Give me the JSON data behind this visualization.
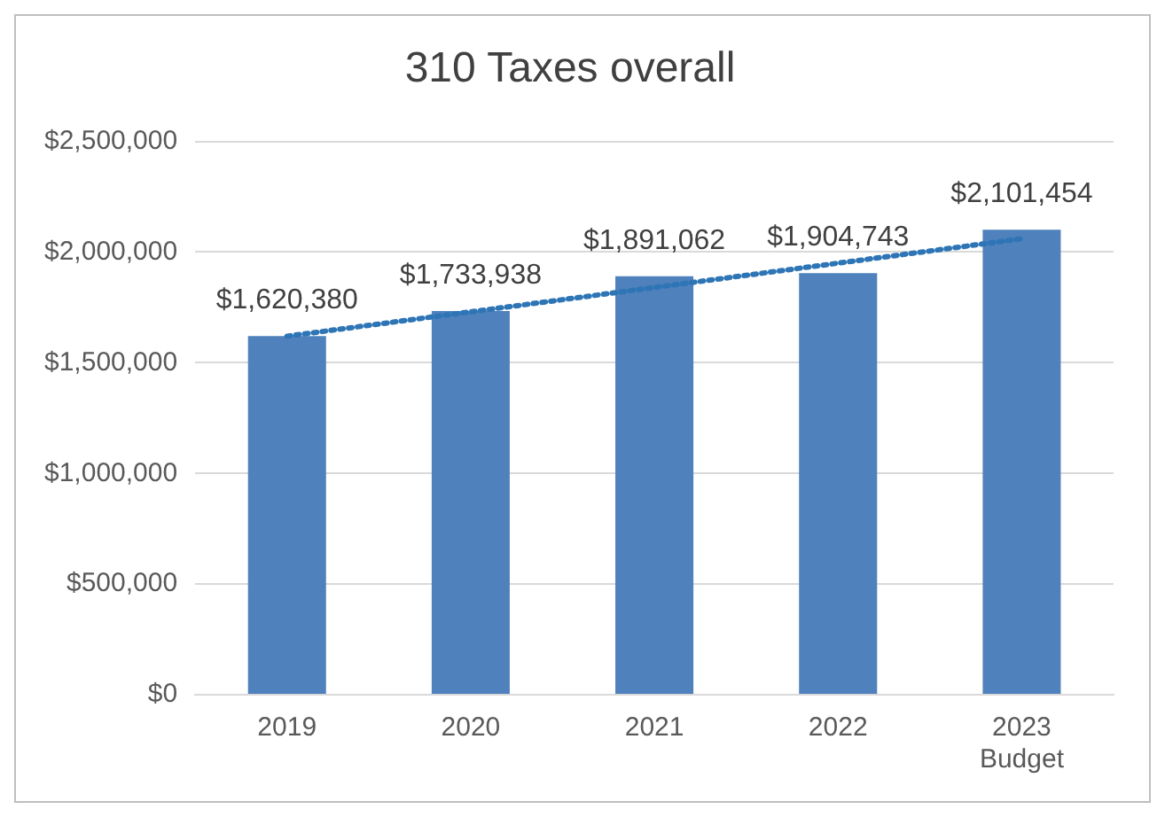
{
  "chart_data": {
    "type": "bar",
    "title": "310 Taxes overall",
    "categories": [
      "2019",
      "2020",
      "2021",
      "2022",
      "2023\nBudget"
    ],
    "series": [
      {
        "color": "#4f81bd",
        "values": [
          1620380,
          1733938,
          1891062,
          1904743,
          2101454
        ],
        "value_labels": [
          "$1,620,380",
          "$1,733,938",
          "$1,891,062",
          "$1,904,743",
          "$2,101,454"
        ]
      },
      {
        "type": "line",
        "color": "#2e75b6",
        "values": [
          1620000,
          1730000,
          1840000,
          1950000,
          2060000
        ],
        "line_style": "dotted",
        "marker": "none"
      }
    ],
    "ylim": [
      0,
      2500000
    ],
    "yticks": [
      {
        "value": 0,
        "label": "$0"
      },
      {
        "value": 500000,
        "label": "$500,000"
      },
      {
        "value": 1000000,
        "label": "$1,000,000"
      },
      {
        "value": 1500000,
        "label": "$1,500,000"
      },
      {
        "value": 2000000,
        "label": "$2,000,000"
      },
      {
        "value": 2500000,
        "label": "$2,500,000"
      }
    ],
    "grid": "y",
    "legend": false
  }
}
